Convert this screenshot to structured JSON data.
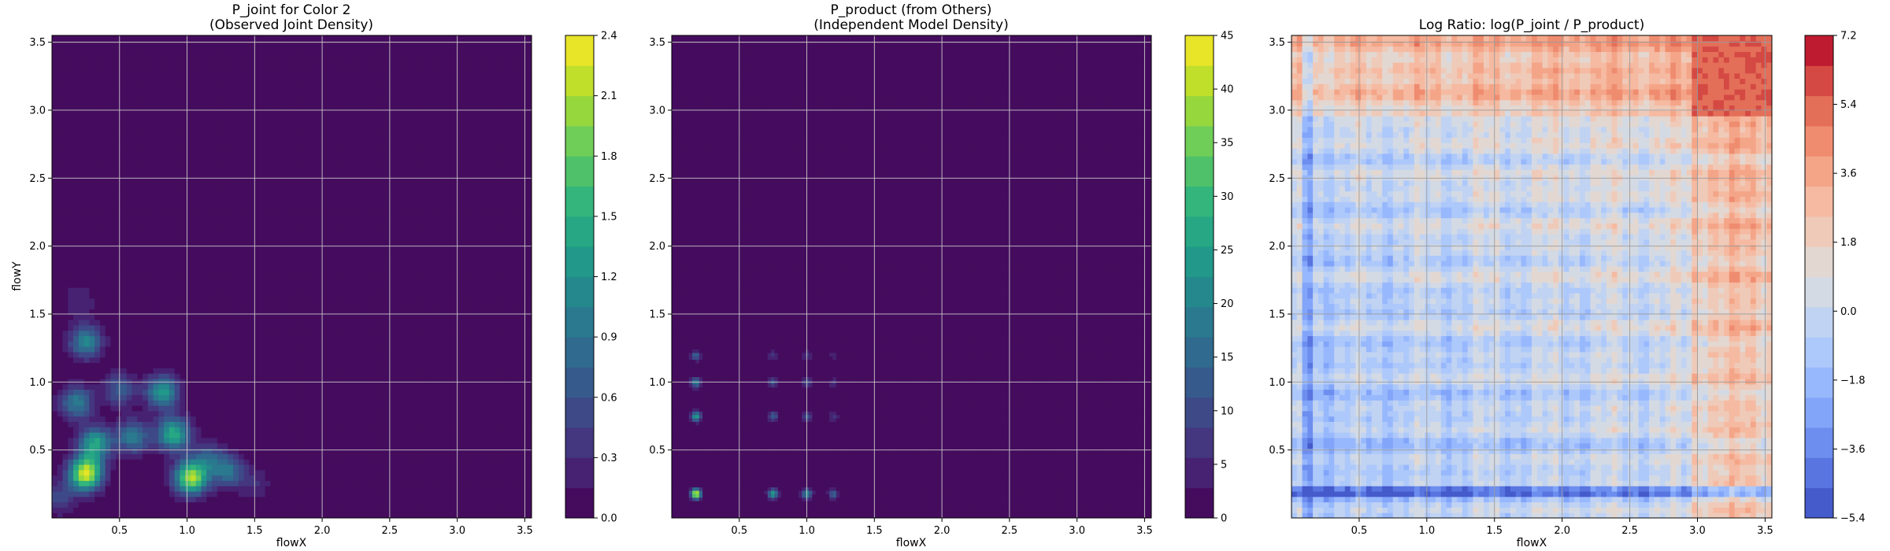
{
  "chart_data": [
    {
      "type": "heatmap",
      "title": "P_joint for Color 2",
      "subtitle": "(Observed Joint Density)",
      "xlabel": "flowX",
      "ylabel": "flowY",
      "xlim": [
        0,
        3.55
      ],
      "ylim": [
        0,
        3.55
      ],
      "xticks": [
        0.5,
        1.0,
        1.5,
        2.0,
        2.5,
        3.0,
        3.5
      ],
      "yticks": [
        0.5,
        1.0,
        1.5,
        2.0,
        2.5,
        3.0,
        3.5
      ],
      "colormap": "viridis",
      "grid": true,
      "colorbar": {
        "min": 0.0,
        "max": 2.4,
        "ticks": [
          "0.0",
          "0.3",
          "0.6",
          "0.9",
          "1.2",
          "1.5",
          "1.8",
          "2.1",
          "2.4"
        ]
      },
      "peaks": [
        {
          "x": 0.25,
          "y": 0.33,
          "v": 2.3
        },
        {
          "x": 1.03,
          "y": 0.3,
          "v": 2.1
        },
        {
          "x": 0.9,
          "y": 0.62,
          "v": 1.5
        },
        {
          "x": 0.32,
          "y": 0.55,
          "v": 1.4
        },
        {
          "x": 0.82,
          "y": 0.93,
          "v": 1.3
        },
        {
          "x": 0.25,
          "y": 1.3,
          "v": 1.1
        },
        {
          "x": 0.18,
          "y": 0.85,
          "v": 1.0
        },
        {
          "x": 0.6,
          "y": 0.6,
          "v": 1.0
        },
        {
          "x": 1.3,
          "y": 0.35,
          "v": 0.9
        },
        {
          "x": 0.5,
          "y": 0.95,
          "v": 0.7
        },
        {
          "x": 1.15,
          "y": 0.45,
          "v": 0.6
        },
        {
          "x": 0.05,
          "y": 0.15,
          "v": 0.5
        },
        {
          "x": 0.2,
          "y": 1.6,
          "v": 0.3
        },
        {
          "x": 1.5,
          "y": 0.25,
          "v": 0.3
        }
      ]
    },
    {
      "type": "heatmap",
      "title": "P_product (from Others)",
      "subtitle": "(Independent Model Density)",
      "xlabel": "flowX",
      "ylabel": "",
      "xlim": [
        0,
        3.55
      ],
      "ylim": [
        0,
        3.55
      ],
      "xticks": [
        0.5,
        1.0,
        1.5,
        2.0,
        2.5,
        3.0,
        3.5
      ],
      "yticks": [
        0.5,
        1.0,
        1.5,
        2.0,
        2.5,
        3.0,
        3.5
      ],
      "colormap": "viridis",
      "grid": true,
      "colorbar": {
        "min": 0,
        "max": 45,
        "ticks": [
          "0",
          "5",
          "10",
          "15",
          "20",
          "25",
          "30",
          "35",
          "40",
          "45"
        ]
      },
      "marginal_x": [
        {
          "x": 0.18,
          "w": 1.0
        },
        {
          "x": 0.75,
          "w": 0.55
        },
        {
          "x": 1.0,
          "w": 0.5
        },
        {
          "x": 1.2,
          "w": 0.3
        }
      ],
      "marginal_y": [
        {
          "y": 0.18,
          "w": 1.0
        },
        {
          "y": 0.75,
          "w": 0.55
        },
        {
          "y": 1.0,
          "w": 0.45
        },
        {
          "y": 1.2,
          "w": 0.3
        }
      ],
      "peak_value": 44
    },
    {
      "type": "heatmap",
      "title": "Log Ratio: log(P_joint / P_product)",
      "xlabel": "flowX",
      "ylabel": "",
      "xlim": [
        0,
        3.55
      ],
      "ylim": [
        0,
        3.55
      ],
      "xticks": [
        0.5,
        1.0,
        1.5,
        2.0,
        2.5,
        3.0,
        3.5
      ],
      "yticks": [
        0.5,
        1.0,
        1.5,
        2.0,
        2.5,
        3.0,
        3.5
      ],
      "colormap": "coolwarm",
      "grid": true,
      "colorbar": {
        "min": -5.4,
        "max": 7.2,
        "ticks": [
          "−5.4",
          "−3.6",
          "−1.8",
          "0.0",
          "1.8",
          "3.6",
          "5.4",
          "7.2"
        ]
      },
      "high_region": {
        "x": [
          2.95,
          3.55
        ],
        "y": [
          2.95,
          3.55
        ],
        "v": 5.5
      }
    }
  ]
}
